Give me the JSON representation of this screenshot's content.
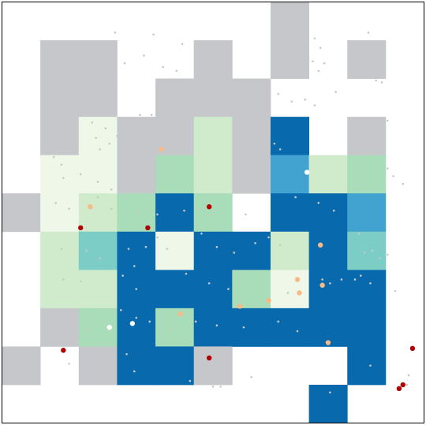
{
  "chart_data": {
    "type": "heatmap",
    "title": "",
    "xlabel": "",
    "ylabel": "",
    "grid": false,
    "legend": "none",
    "xlim": [
      0,
      11
    ],
    "ylim": [
      0,
      11
    ],
    "n_cols": 11,
    "n_rows": 11,
    "colors": {
      "0": "#c6c7cb",
      "1": "#eff8e8",
      "2": "#cfebcb",
      "3": "#a9dcb9",
      "4": "#7ccdc6",
      "5": "#42a3d0",
      "6": "#0869ad",
      "small_point": "#c8c8c8",
      "white_point": "#ffffff",
      "peach_point": "#f7ba86",
      "dark_red_point": "#b10101"
    },
    "cells": [
      [
        7,
        0,
        0
      ],
      [
        7,
        1,
        0
      ],
      [
        1,
        1,
        0
      ],
      [
        2,
        1,
        0
      ],
      [
        5,
        1,
        0
      ],
      [
        9,
        1,
        0
      ],
      [
        1,
        2,
        0
      ],
      [
        2,
        2,
        0
      ],
      [
        4,
        2,
        0
      ],
      [
        5,
        2,
        0
      ],
      [
        6,
        2,
        0
      ],
      [
        1,
        3,
        0
      ],
      [
        2,
        3,
        1
      ],
      [
        3,
        3,
        0
      ],
      [
        4,
        3,
        0
      ],
      [
        5,
        3,
        2
      ],
      [
        6,
        3,
        0
      ],
      [
        7,
        3,
        6
      ],
      [
        9,
        3,
        0
      ],
      [
        1,
        4,
        1
      ],
      [
        2,
        4,
        1
      ],
      [
        3,
        4,
        0
      ],
      [
        4,
        4,
        3
      ],
      [
        5,
        4,
        2
      ],
      [
        6,
        4,
        0
      ],
      [
        7,
        4,
        5
      ],
      [
        8,
        4,
        2
      ],
      [
        9,
        4,
        3
      ],
      [
        0,
        5,
        0
      ],
      [
        1,
        5,
        1
      ],
      [
        2,
        5,
        2
      ],
      [
        3,
        5,
        3
      ],
      [
        4,
        5,
        6
      ],
      [
        5,
        5,
        3
      ],
      [
        7,
        5,
        6
      ],
      [
        8,
        5,
        6
      ],
      [
        9,
        5,
        5
      ],
      [
        1,
        6,
        2
      ],
      [
        2,
        6,
        4
      ],
      [
        3,
        6,
        6
      ],
      [
        4,
        6,
        1
      ],
      [
        5,
        6,
        6
      ],
      [
        6,
        6,
        6
      ],
      [
        7,
        6,
        2
      ],
      [
        8,
        6,
        6
      ],
      [
        9,
        6,
        4
      ],
      [
        1,
        7,
        2
      ],
      [
        2,
        7,
        2
      ],
      [
        3,
        7,
        6
      ],
      [
        4,
        7,
        6
      ],
      [
        5,
        7,
        6
      ],
      [
        6,
        7,
        3
      ],
      [
        7,
        7,
        1
      ],
      [
        8,
        7,
        6
      ],
      [
        9,
        7,
        6
      ],
      [
        1,
        8,
        0
      ],
      [
        2,
        8,
        3
      ],
      [
        3,
        8,
        6
      ],
      [
        4,
        8,
        3
      ],
      [
        5,
        8,
        6
      ],
      [
        6,
        8,
        6
      ],
      [
        7,
        8,
        6
      ],
      [
        8,
        8,
        6
      ],
      [
        9,
        8,
        6
      ],
      [
        0,
        9,
        0
      ],
      [
        2,
        9,
        0
      ],
      [
        3,
        9,
        6
      ],
      [
        4,
        9,
        6
      ],
      [
        5,
        9,
        0
      ],
      [
        9,
        9,
        6
      ],
      [
        8,
        10,
        6
      ]
    ],
    "points": {
      "small": [
        [
          2.95,
          0.8
        ],
        [
          3.95,
          0.85
        ],
        [
          3.2,
          1.6
        ],
        [
          3.7,
          1.4
        ],
        [
          4.2,
          1.7
        ],
        [
          4.55,
          1.8
        ],
        [
          4.7,
          1.1
        ],
        [
          5.3,
          1.2
        ],
        [
          5.6,
          1.5
        ],
        [
          8.15,
          0.95
        ],
        [
          8.3,
          1.2
        ],
        [
          8.1,
          1.55
        ],
        [
          8.25,
          1.8
        ],
        [
          8.4,
          1.6
        ],
        [
          9.55,
          0.8
        ],
        [
          9.75,
          2.05
        ],
        [
          9.9,
          2.1
        ],
        [
          7.2,
          2.4
        ],
        [
          7.55,
          2.6
        ],
        [
          7.9,
          2.55
        ],
        [
          8.15,
          2.7
        ],
        [
          8.7,
          2.35
        ],
        [
          3.6,
          2.95
        ],
        [
          3.9,
          2.95
        ],
        [
          2.35,
          3.15
        ],
        [
          2.7,
          3.3
        ],
        [
          2.45,
          3.55
        ],
        [
          2.8,
          3.7
        ],
        [
          2.55,
          3.85
        ],
        [
          3.0,
          3.5
        ],
        [
          3.25,
          3.85
        ],
        [
          4.1,
          3.6
        ],
        [
          4.65,
          3.7
        ],
        [
          7.1,
          3.7
        ],
        [
          7.25,
          3.85
        ],
        [
          10.05,
          3.1
        ],
        [
          1.35,
          4.05
        ],
        [
          1.55,
          4.25
        ],
        [
          2.05,
          4.5
        ],
        [
          2.5,
          4.7
        ],
        [
          2.85,
          4.9
        ],
        [
          1.6,
          4.6
        ],
        [
          10.05,
          4.35
        ],
        [
          10.2,
          4.55
        ],
        [
          10.45,
          4.75
        ],
        [
          1.4,
          5.25
        ],
        [
          1.75,
          5.4
        ],
        [
          2.5,
          5.1
        ],
        [
          2.85,
          5.4
        ],
        [
          3.2,
          5.1
        ],
        [
          3.55,
          5.45
        ],
        [
          4.05,
          5.55
        ],
        [
          4.75,
          5.45
        ],
        [
          5.1,
          5.4
        ],
        [
          5.45,
          5.55
        ],
        [
          6.35,
          5.55
        ],
        [
          7.65,
          5.1
        ],
        [
          8.25,
          5.25
        ],
        [
          8.65,
          5.45
        ],
        [
          1.55,
          6.45
        ],
        [
          2.2,
          6.5
        ],
        [
          2.55,
          6.7
        ],
        [
          3.3,
          6.45
        ],
        [
          3.75,
          6.4
        ],
        [
          3.45,
          6.9
        ],
        [
          4.05,
          6.15
        ],
        [
          4.3,
          6.45
        ],
        [
          5.2,
          6.05
        ],
        [
          5.6,
          6.4
        ],
        [
          6.05,
          6.55
        ],
        [
          6.6,
          6.3
        ],
        [
          6.95,
          6.15
        ],
        [
          7.25,
          6.35
        ],
        [
          9.3,
          6.05
        ],
        [
          9.45,
          6.55
        ],
        [
          9.65,
          6.5
        ],
        [
          9.85,
          6.7
        ],
        [
          10.05,
          6.6
        ],
        [
          1.6,
          7.25
        ],
        [
          2.05,
          7.3
        ],
        [
          3.15,
          7.15
        ],
        [
          3.5,
          7.5
        ],
        [
          4.8,
          7.1
        ],
        [
          5.4,
          7.35
        ],
        [
          5.9,
          7.5
        ],
        [
          6.2,
          7.1
        ],
        [
          8.35,
          7.25
        ],
        [
          8.55,
          7.35
        ],
        [
          8.85,
          7.25
        ],
        [
          9.2,
          7.25
        ],
        [
          9.35,
          7.15
        ],
        [
          9.6,
          7.35
        ],
        [
          10.25,
          7.55
        ],
        [
          7.45,
          7.6
        ],
        [
          3.1,
          8.05
        ],
        [
          3.5,
          8.25
        ],
        [
          1.1,
          8.45
        ],
        [
          1.75,
          8.5
        ],
        [
          2.25,
          8.55
        ],
        [
          3.85,
          8.35
        ],
        [
          4.35,
          8.55
        ],
        [
          5.05,
          8.35
        ],
        [
          5.6,
          8.45
        ],
        [
          6.3,
          8.5
        ],
        [
          7.2,
          8.35
        ],
        [
          7.7,
          8.6
        ],
        [
          1.75,
          9.45
        ],
        [
          3.25,
          9.2
        ],
        [
          3.45,
          9.65
        ],
        [
          4.9,
          9.9
        ],
        [
          5.5,
          10.05
        ],
        [
          5.7,
          10.05
        ],
        [
          6.5,
          9.8
        ],
        [
          9.6,
          9.5
        ],
        [
          10.6,
          9.75
        ],
        [
          10.55,
          10.0
        ],
        [
          8.55,
          10.2
        ]
      ],
      "white": [
        [
          7.95,
          4.45
        ],
        [
          3.4,
          8.4
        ],
        [
          2.8,
          8.5
        ]
      ],
      "peach": [
        [
          4.15,
          3.85
        ],
        [
          2.3,
          5.35
        ],
        [
          8.3,
          6.35
        ],
        [
          7.7,
          7.25
        ],
        [
          7.75,
          7.6
        ],
        [
          8.35,
          7.4
        ],
        [
          6.95,
          7.8
        ],
        [
          6.2,
          7.95
        ],
        [
          4.65,
          8.15
        ],
        [
          8.5,
          8.9
        ]
      ],
      "dark_red": [
        [
          5.4,
          5.35
        ],
        [
          2.05,
          5.9
        ],
        [
          3.8,
          5.9
        ],
        [
          1.6,
          9.1
        ],
        [
          5.4,
          9.3
        ],
        [
          10.7,
          9.05
        ],
        [
          10.45,
          10.0
        ],
        [
          10.35,
          10.1
        ]
      ]
    }
  }
}
